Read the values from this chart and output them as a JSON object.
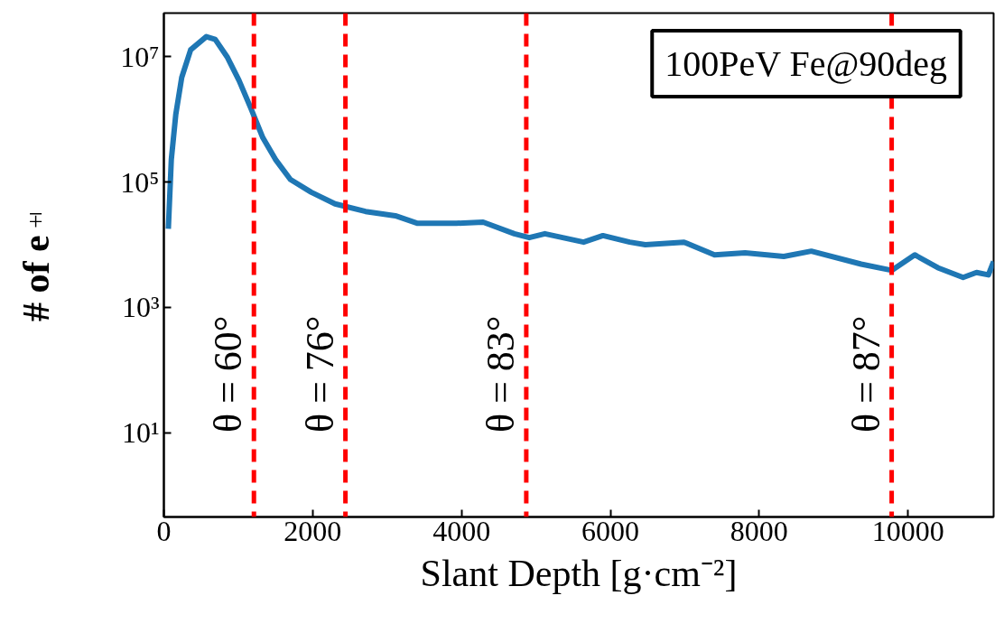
{
  "chart_data": {
    "type": "line",
    "xlabel": "Slant Depth [g·cm⁻²]",
    "ylabel": "# of e$^{±}$",
    "annotations": [
      "100PeV Fe@90deg",
      {
        "text": "θ = 60°",
        "x": 1210,
        "y": 10
      },
      {
        "text": "θ = 76°",
        "x": 2440,
        "y": 10
      },
      {
        "text": "θ = 83°",
        "x": 4870,
        "y": 10
      },
      {
        "text": "θ = 87°",
        "x": 9780,
        "y": 10
      }
    ],
    "log": "y",
    "grid": false,
    "marker": "none",
    "line_style": "solid",
    "xlim": [
      0,
      11150
    ],
    "ylim": [
      0.45,
      50000000
    ],
    "xticks": [
      0,
      2000,
      4000,
      6000,
      8000,
      10000
    ],
    "yticks": [
      {
        "value": 10,
        "label": "10¹"
      },
      {
        "value": 1000,
        "label": "10³"
      },
      {
        "value": 100000,
        "label": "10⁵"
      },
      {
        "value": 10000000,
        "label": "10⁷"
      }
    ],
    "x": [
      60,
      100,
      160,
      240,
      360,
      570,
      690,
      850,
      1010,
      1170,
      1330,
      1500,
      1700,
      1980,
      2300,
      2710,
      3110,
      3410,
      3930,
      4290,
      4710,
      4910,
      5120,
      5640,
      5900,
      6260,
      6470,
      6990,
      7400,
      7810,
      8330,
      8700,
      9370,
      9780,
      10090,
      10400,
      10740,
      10920,
      11080,
      11150
    ],
    "series": [
      {
        "color": "#1f77b4",
        "values": [
          18000,
          230000,
          1200000,
          4700000,
          13000000,
          21000000,
          19000000,
          10000000,
          4200000,
          1500000,
          510000,
          230000,
          110000,
          69000,
          45000,
          34000,
          29000,
          22000,
          22000,
          23000,
          15000,
          13000,
          15000,
          11000,
          14000,
          11000,
          10000,
          11000,
          6900,
          7400,
          6500,
          7900,
          4900,
          3900,
          6900,
          4300,
          3000,
          3600,
          3300,
          5400
        ]
      }
    ],
    "ref_lines": [
      {
        "axis": "x",
        "value": 1210,
        "color": "#ff0000",
        "line_style": "dashed"
      },
      {
        "axis": "x",
        "value": 2440,
        "color": "#ff0000",
        "line_style": "dashed"
      },
      {
        "axis": "x",
        "value": 4870,
        "color": "#ff0000",
        "line_style": "dashed"
      },
      {
        "axis": "x",
        "value": 9780,
        "color": "#ff0000",
        "line_style": "dashed"
      }
    ]
  }
}
